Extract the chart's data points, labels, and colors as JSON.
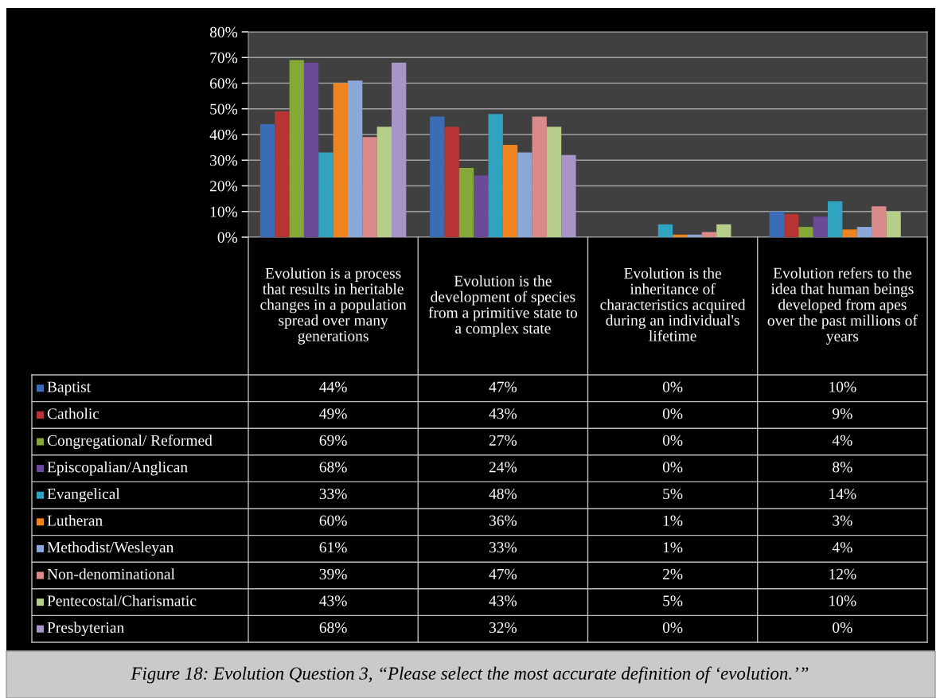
{
  "chart_data": {
    "type": "bar",
    "categories": [
      "Evolution is a process that results in heritable changes in a population spread over many generations",
      "Evolution is the development of species from a primitive state to a complex state",
      "Evolution is the inheritance of characteristics acquired during an individual's lifetime",
      "Evolution refers to the idea that human beings developed from apes over the past millions of years"
    ],
    "series": [
      {
        "name": "Baptist",
        "color": "#3a6db5",
        "values": [
          44,
          47,
          0,
          10
        ],
        "value_labels": [
          "44%",
          "47%",
          "0%",
          "10%"
        ]
      },
      {
        "name": "Catholic",
        "color": "#b83434",
        "values": [
          49,
          43,
          0,
          9
        ],
        "value_labels": [
          "49%",
          "43%",
          "0%",
          "9%"
        ]
      },
      {
        "name": "Congregational/ Reformed",
        "color": "#86a838",
        "values": [
          69,
          27,
          0,
          4
        ],
        "value_labels": [
          "69%",
          "27%",
          "0%",
          "4%"
        ]
      },
      {
        "name": "Episcopalian/Anglican",
        "color": "#6b4a9a",
        "values": [
          68,
          24,
          0,
          8
        ],
        "value_labels": [
          "68%",
          "24%",
          "0%",
          "8%"
        ]
      },
      {
        "name": "Evangelical",
        "color": "#2fa3c0",
        "values": [
          33,
          48,
          5,
          14
        ],
        "value_labels": [
          "33%",
          "48%",
          "5%",
          "14%"
        ]
      },
      {
        "name": "Lutheran",
        "color": "#ee8420",
        "values": [
          60,
          36,
          1,
          3
        ],
        "value_labels": [
          "60%",
          "36%",
          "1%",
          "3%"
        ]
      },
      {
        "name": "Methodist/Wesleyan",
        "color": "#8aa8d8",
        "values": [
          61,
          33,
          1,
          4
        ],
        "value_labels": [
          "61%",
          "33%",
          "1%",
          "4%"
        ]
      },
      {
        "name": "Non-denominational",
        "color": "#db8a8a",
        "values": [
          39,
          47,
          2,
          12
        ],
        "value_labels": [
          "39%",
          "47%",
          "2%",
          "12%"
        ]
      },
      {
        "name": "Pentecostal/Charismatic",
        "color": "#b5cf8a",
        "values": [
          43,
          43,
          5,
          10
        ],
        "value_labels": [
          "43%",
          "43%",
          "5%",
          "10%"
        ]
      },
      {
        "name": "Presbyterian",
        "color": "#a795c8",
        "values": [
          68,
          32,
          0,
          0
        ],
        "value_labels": [
          "68%",
          "32%",
          "0%",
          "0%"
        ]
      }
    ],
    "ylim": [
      0,
      80
    ],
    "yticks": [
      {
        "value": 0,
        "label": "0%"
      },
      {
        "value": 10,
        "label": "10%"
      },
      {
        "value": 20,
        "label": "20%"
      },
      {
        "value": 30,
        "label": "30%"
      },
      {
        "value": 40,
        "label": "40%"
      },
      {
        "value": 50,
        "label": "50%"
      },
      {
        "value": 60,
        "label": "60%"
      },
      {
        "value": 70,
        "label": "70%"
      },
      {
        "value": 80,
        "label": "80%"
      }
    ],
    "grid": "y",
    "legend": "bottom",
    "annotations": [
      "Figure 18: Evolution Question 3, “Please select the most accurate definition of ‘evolution.’”"
    ]
  }
}
